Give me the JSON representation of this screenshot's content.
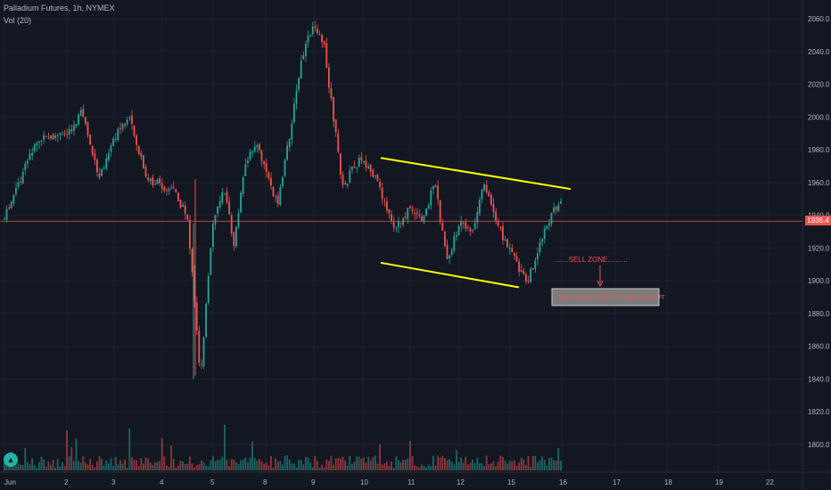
{
  "header": {
    "symbol_line": "Palladium Futures, 1h, NYMEX",
    "volume_line": "Vol (20)"
  },
  "last_price_label": "1936.4",
  "annotations": {
    "sell_zone": "........SELL ZONE..........",
    "take_profit": "TAKE YOUR PROFIT AND GO OUT"
  },
  "colors": {
    "background": "#131722",
    "up": "#26a69a",
    "down": "#ef5350",
    "grid": "#1f2330",
    "channel": "#ffff00",
    "last_price_line": "#ef5350"
  },
  "chart_data": {
    "type": "candlestick",
    "y_axis": {
      "ticks": [
        "2060.0",
        "2040.0",
        "2020.0",
        "2000.0",
        "1980.0",
        "1960.0",
        "1940.0",
        "1920.0",
        "1900.0",
        "1880.0",
        "1860.0",
        "1840.0",
        "1820.0",
        "1800.0"
      ],
      "range": [
        1784,
        2064
      ]
    },
    "x_axis": {
      "ticks": [
        "Jun",
        "2",
        "3",
        "4",
        "5",
        "8",
        "9",
        "10",
        "11",
        "12",
        "15",
        "16",
        "17",
        "18",
        "19",
        "22"
      ]
    },
    "last_price": 1936.4,
    "channel": {
      "upper": {
        "from": {
          "date": "10",
          "price": 1975
        },
        "to": {
          "date": "16",
          "price": 1956
        }
      },
      "lower": {
        "from": {
          "date": "10",
          "price": 1911
        },
        "to": {
          "date": "15",
          "price": 1896
        }
      }
    },
    "price_path": [
      {
        "date": "Jun",
        "price": 1938
      },
      {
        "date": "Jun",
        "price": 1985
      },
      {
        "date": "2",
        "price": 1990
      },
      {
        "date": "2",
        "price": 2003
      },
      {
        "date": "2",
        "price": 1962
      },
      {
        "date": "3",
        "price": 1988
      },
      {
        "date": "3",
        "price": 1998
      },
      {
        "date": "3",
        "price": 1962
      },
      {
        "date": "4",
        "price": 1958
      },
      {
        "date": "4",
        "price": 1955
      },
      {
        "date": "4",
        "price": 1938
      },
      {
        "date": "4",
        "price": 1842
      },
      {
        "date": "5",
        "price": 1935
      },
      {
        "date": "5",
        "price": 1958
      },
      {
        "date": "5",
        "price": 1922
      },
      {
        "date": "5",
        "price": 1968
      },
      {
        "date": "5",
        "price": 1985
      },
      {
        "date": "8",
        "price": 1968
      },
      {
        "date": "8",
        "price": 1945
      },
      {
        "date": "8",
        "price": 1990
      },
      {
        "date": "8",
        "price": 2035
      },
      {
        "date": "9",
        "price": 2058
      },
      {
        "date": "9",
        "price": 2045
      },
      {
        "date": "9",
        "price": 2000
      },
      {
        "date": "9",
        "price": 1955
      },
      {
        "date": "9",
        "price": 1970
      },
      {
        "date": "10",
        "price": 1975
      },
      {
        "date": "10",
        "price": 1958
      },
      {
        "date": "10",
        "price": 1930
      },
      {
        "date": "11",
        "price": 1945
      },
      {
        "date": "11",
        "price": 1935
      },
      {
        "date": "11",
        "price": 1962
      },
      {
        "date": "11",
        "price": 1910
      },
      {
        "date": "12",
        "price": 1935
      },
      {
        "date": "12",
        "price": 1928
      },
      {
        "date": "12",
        "price": 1960
      },
      {
        "date": "12",
        "price": 1935
      },
      {
        "date": "15",
        "price": 1918
      },
      {
        "date": "15",
        "price": 1898
      },
      {
        "date": "15",
        "price": 1932
      },
      {
        "date": "16",
        "price": 1951
      },
      {
        "date": "16",
        "price": 1936
      }
    ]
  }
}
